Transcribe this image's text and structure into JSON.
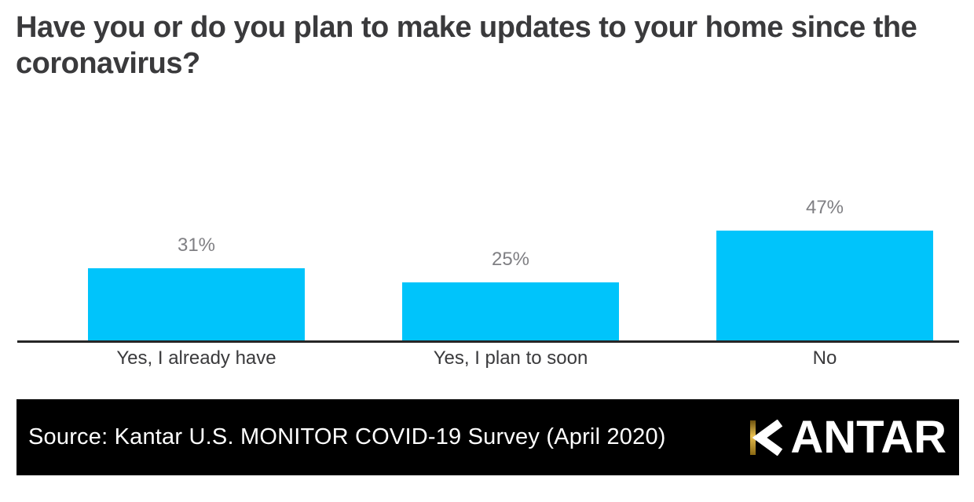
{
  "title": "Have you or do you plan to make updates to your home since the coronavirus?",
  "chart_data": {
    "type": "bar",
    "title": "Have you or do you plan to make updates to your home since the coronavirus?",
    "categories": [
      "Yes, I already have",
      "Yes, I plan to soon",
      "No"
    ],
    "values": [
      31,
      25,
      47
    ],
    "value_labels": [
      "31%",
      "25%",
      "47%"
    ],
    "xlabel": "",
    "ylabel": "",
    "ylim": [
      0,
      70
    ],
    "grid": false,
    "legend": false,
    "bar_color": "#00c4fb",
    "value_label_color": "#7f7f83",
    "category_label_color": "#3a3a3c",
    "axis_color": "#262626"
  },
  "footer": {
    "source_text": "Source: Kantar U.S. MONITOR COVID-19 Survey (April 2020)",
    "logo_name": "KANTAR",
    "logo_text_after_k": "ANTAR",
    "banner_color": "#000000",
    "logo_gold_color": "#d9ae3c"
  },
  "colors": {
    "background": "#ffffff",
    "title_text": "#3a3a3c"
  }
}
